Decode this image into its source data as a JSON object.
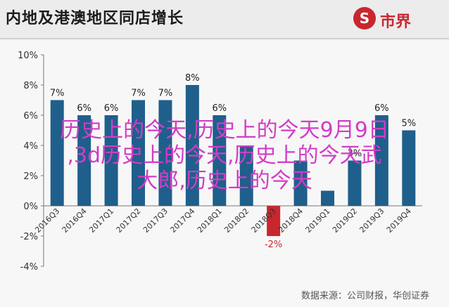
{
  "header": {
    "title": "内地及港澳地区同店增长",
    "logo_symbol": "S",
    "logo_text": "市界"
  },
  "chart_data": {
    "type": "bar",
    "categories": [
      "2016Q3",
      "2016Q4",
      "2017Q1",
      "2017Q2",
      "2017Q3",
      "2017Q4",
      "2018Q1",
      "2018Q2",
      "2018Q3",
      "2018Q4",
      "2019Q1",
      "2019Q2",
      "2019Q3",
      "2019Q4"
    ],
    "values": [
      7,
      6,
      6,
      7,
      7,
      8,
      6,
      4,
      -2,
      3,
      1,
      3,
      6,
      5
    ],
    "data_labels": [
      "7%",
      "6%",
      "6%",
      "7%",
      "7%",
      "8%",
      "6%",
      "",
      "-2%",
      "",
      "",
      "3%",
      "6%",
      "5%"
    ],
    "y_ticks": [
      "10%",
      "8%",
      "6%",
      "4%",
      "2%",
      "0%",
      "-2%",
      "-4%"
    ],
    "ylim": [
      -4,
      10
    ],
    "grid": false,
    "positive_color": "#1f5f8b",
    "negative_color": "#c9272e"
  },
  "source": "数据来源：公司财报，华创证券",
  "overlay_lines": [
    "历史上的今天,历史上的今天9月9日",
    ",3d历史上的今天,历史上的今天武",
    "大郎,历史上的今天"
  ]
}
